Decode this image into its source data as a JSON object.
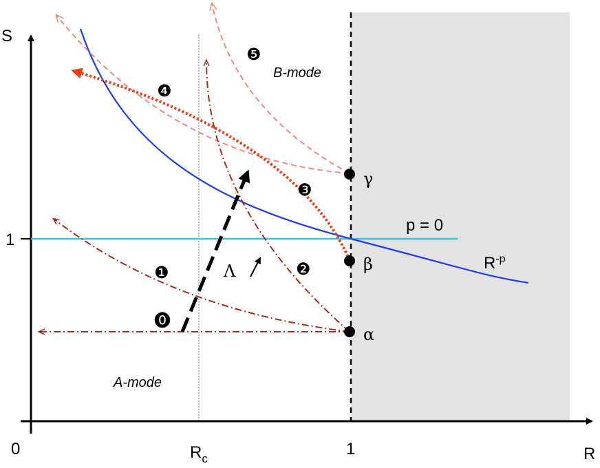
{
  "axes": {
    "y_label": "S",
    "x_label": "R",
    "origin": "0",
    "y_one": "1",
    "x_one": "1",
    "rc": "R",
    "rc_sub": "c"
  },
  "curves": {
    "p0": "p = 0",
    "rp": "R",
    "rp_sup": "-p"
  },
  "points": {
    "gamma": "γ",
    "beta": "β",
    "alpha": "α"
  },
  "lambda": "Λ",
  "modes": {
    "a": "A-mode",
    "b": "B-mode"
  },
  "paths": [
    "⓿",
    "❶",
    "❷",
    "❸",
    "❹",
    "❺"
  ]
}
